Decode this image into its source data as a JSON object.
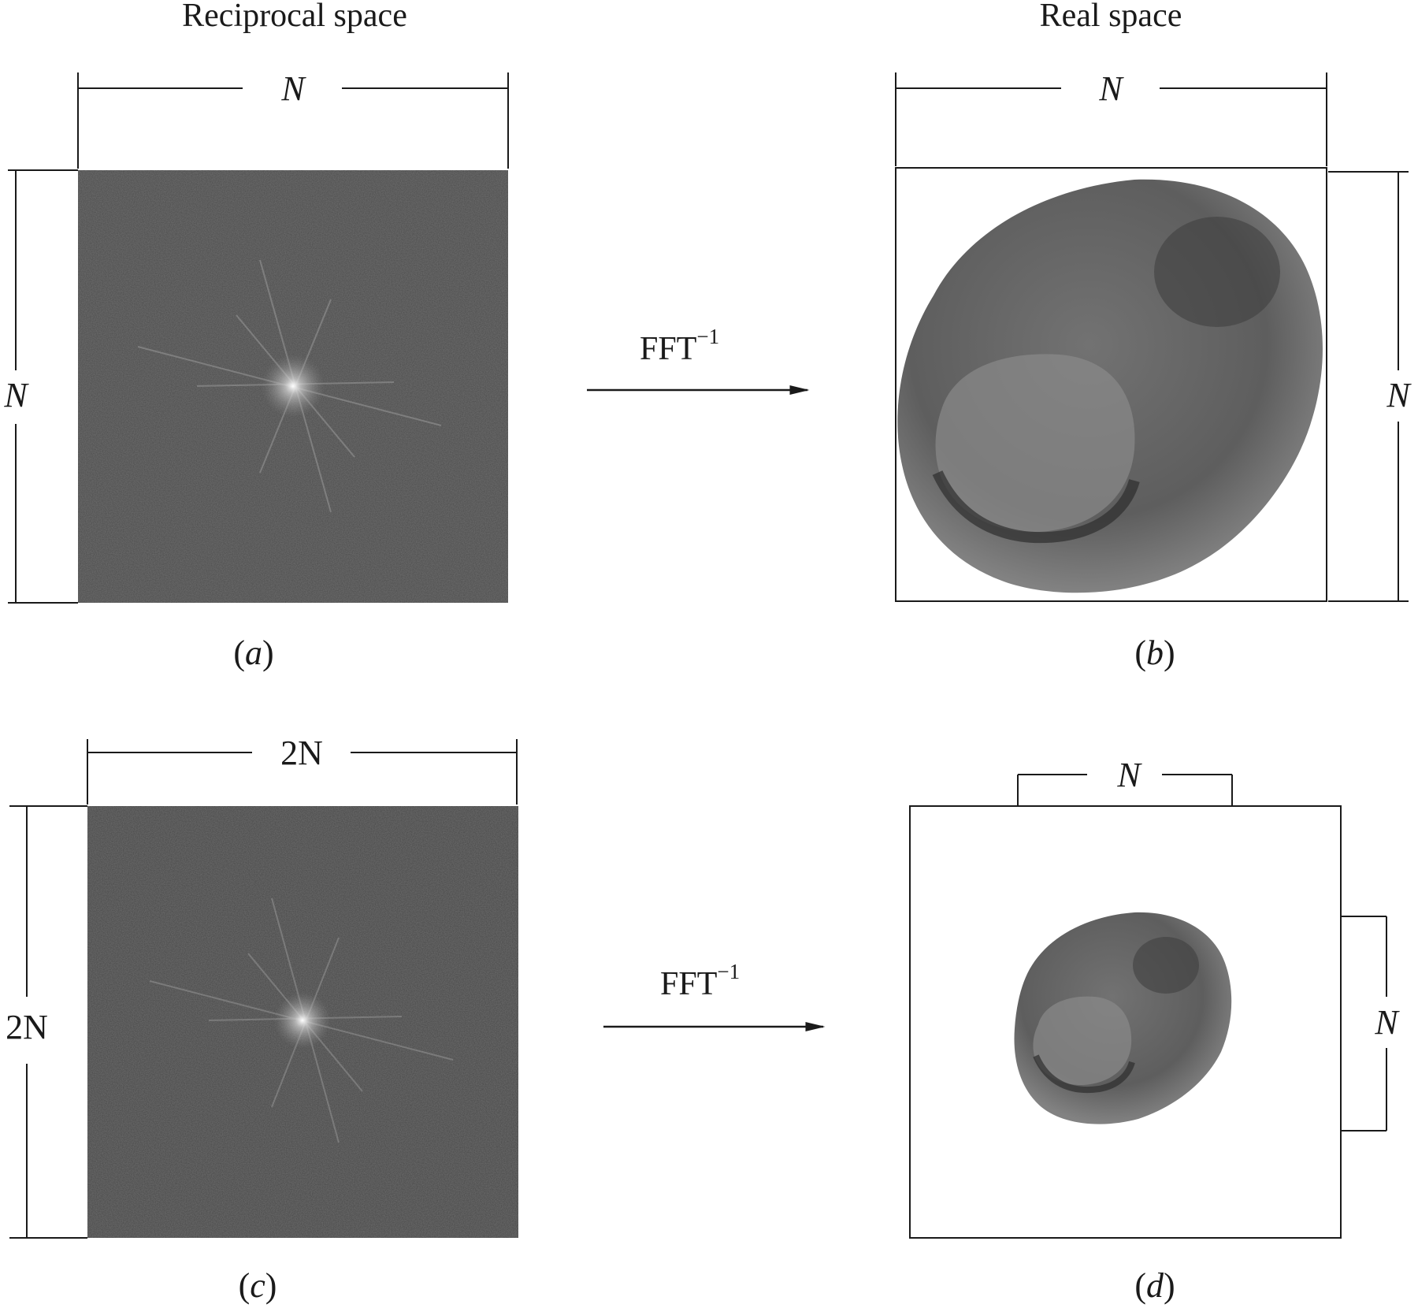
{
  "headings": {
    "reciprocal": "Reciprocal space",
    "real": "Real space"
  },
  "dimension_labels": {
    "a_top": "N",
    "a_left": "N",
    "b_top": "N",
    "b_right": "N",
    "c_top": "2N",
    "c_left": "2N",
    "d_top": "N",
    "d_right": "N"
  },
  "transform": {
    "base": "FFT",
    "exponent": "−1"
  },
  "captions": {
    "a": "a",
    "b": "b",
    "c": "c",
    "d": "d"
  },
  "colors": {
    "line": "#1a1a1a",
    "spectrum_bg": "#4a4a4a",
    "particle": "#5a5a5a"
  }
}
